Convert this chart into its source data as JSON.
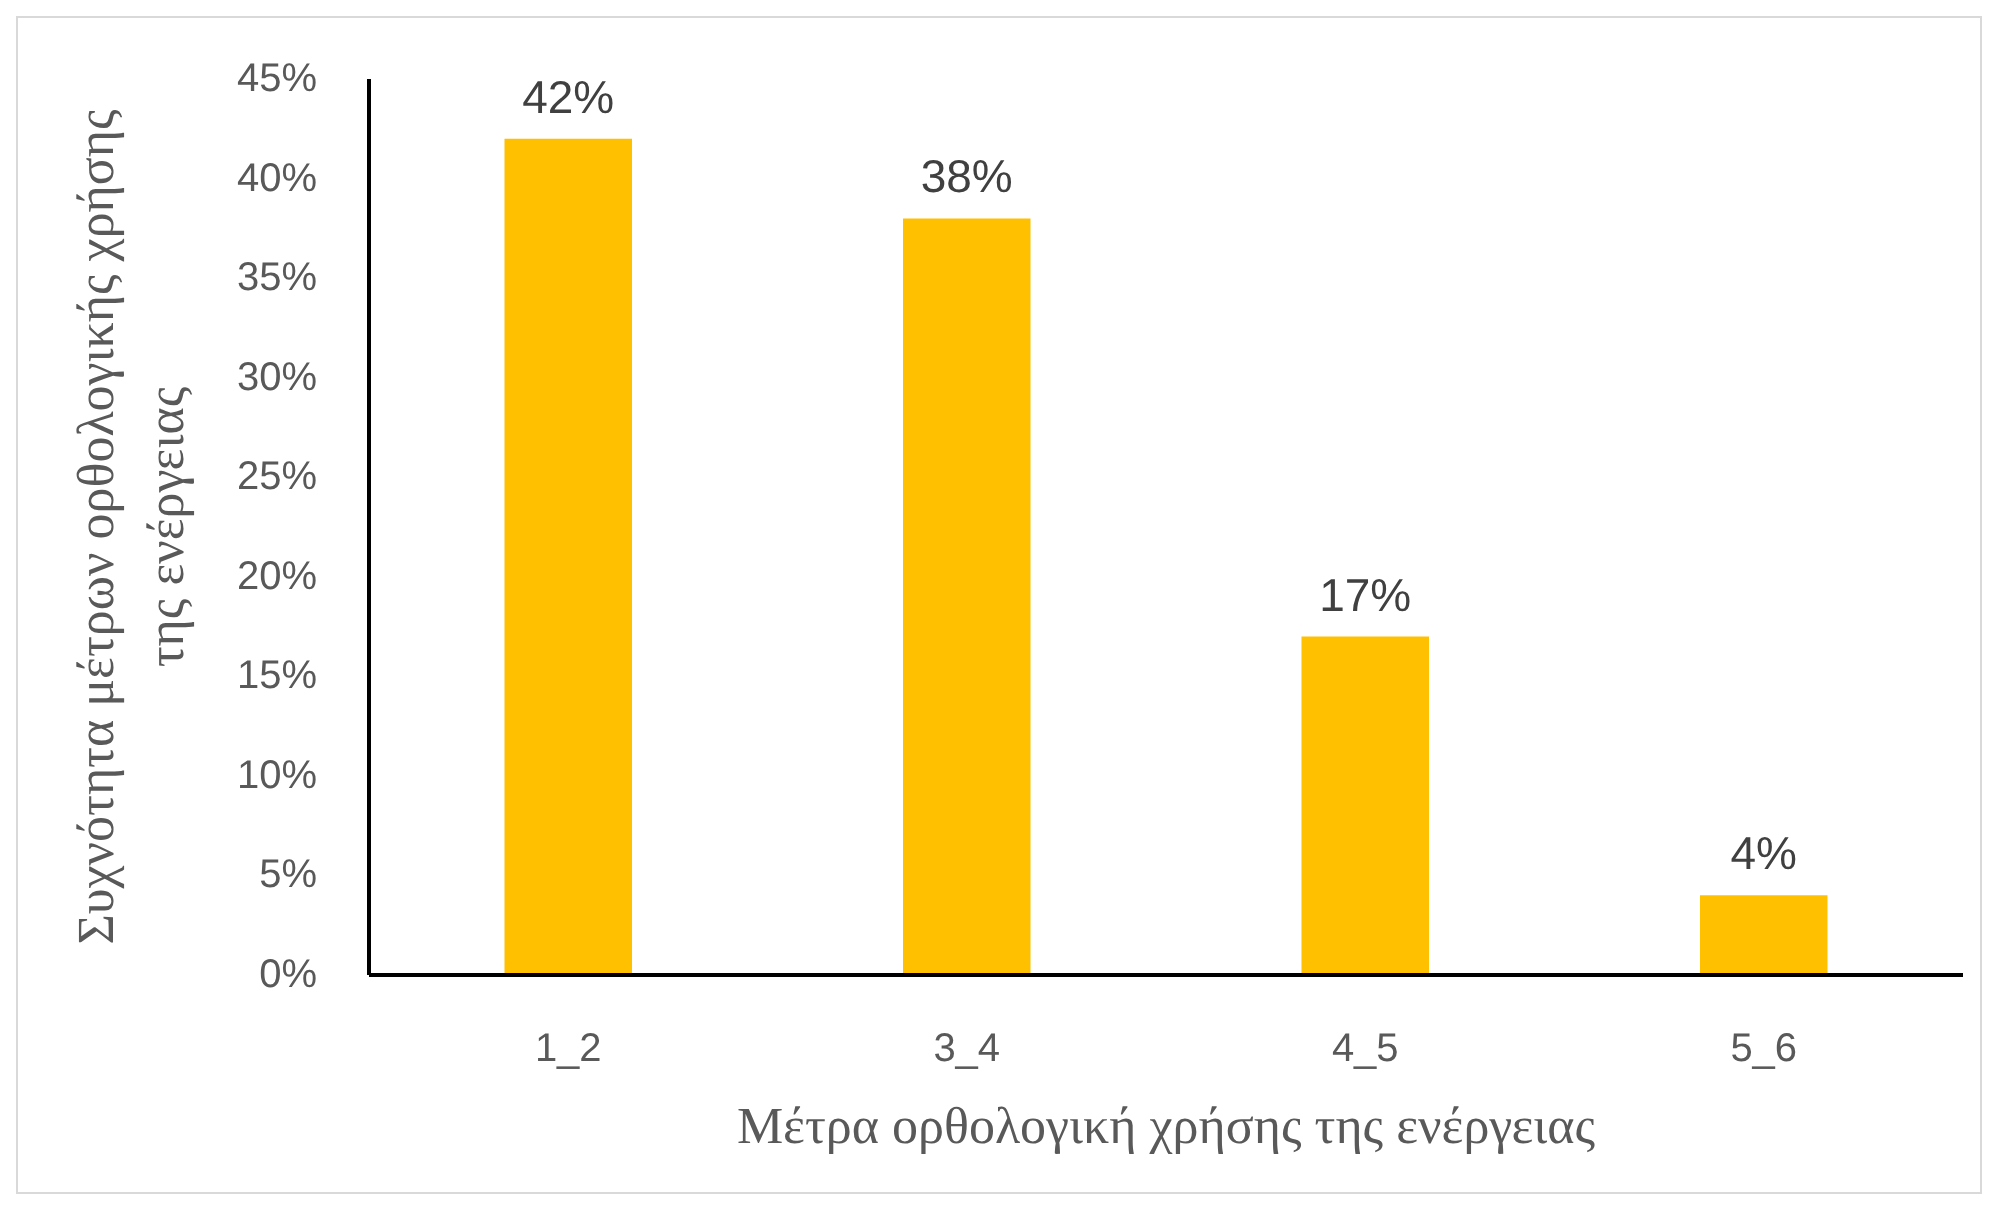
{
  "chart_data": {
    "type": "bar",
    "xlabel": "Μέτρα ορθολογική χρήσης της ενέργειας",
    "ylabel": "Συχνότητα μέτρων ορθολογικής χρήσης\nτης ενέργειας",
    "categories": [
      "1_2",
      "3_4",
      "4_5",
      "5_6"
    ],
    "values": [
      42,
      38,
      17,
      4
    ],
    "value_labels": [
      "42%",
      "38%",
      "17%",
      "4%"
    ],
    "color": "#ffc000",
    "ylim": [
      0,
      45
    ],
    "yticks": [
      {
        "value": 0,
        "label": "0%"
      },
      {
        "value": 5,
        "label": "5%"
      },
      {
        "value": 10,
        "label": "10%"
      },
      {
        "value": 15,
        "label": "15%"
      },
      {
        "value": 20,
        "label": "20%"
      },
      {
        "value": 25,
        "label": "25%"
      },
      {
        "value": 30,
        "label": "30%"
      },
      {
        "value": 35,
        "label": "35%"
      },
      {
        "value": 40,
        "label": "40%"
      },
      {
        "value": 45,
        "label": "45%"
      }
    ],
    "grid": false
  }
}
